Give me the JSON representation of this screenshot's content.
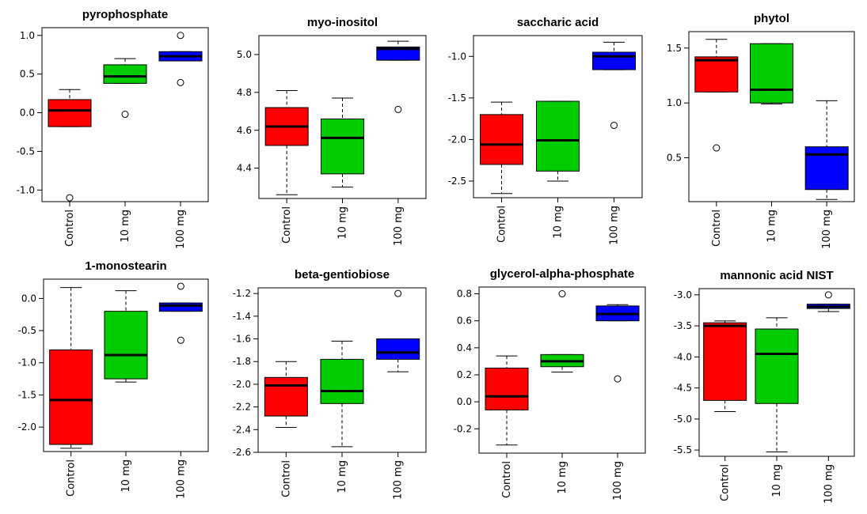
{
  "colors": {
    "Control": "#ff0000",
    "10 mg": "#00cc00",
    "100 mg": "#0000ff"
  },
  "chart_data": [
    {
      "type": "boxplot",
      "title": "pyrophosphate",
      "categories": [
        "Control",
        "10 mg",
        "100 mg"
      ],
      "ylim": [
        -1.15,
        1.1
      ],
      "yticks": [
        -1.0,
        -0.5,
        0.0,
        0.5,
        1.0
      ],
      "tick_labels": [
        "-1.0",
        "-0.5",
        "0.0",
        "0.5",
        "1.0"
      ],
      "boxes": [
        {
          "min": -0.18,
          "q1": -0.18,
          "median": 0.03,
          "q3": 0.17,
          "max": 0.3,
          "outliers": [
            -1.1
          ]
        },
        {
          "min": 0.38,
          "q1": 0.38,
          "median": 0.47,
          "q3": 0.62,
          "max": 0.7,
          "outliers": [
            -0.02
          ]
        },
        {
          "min": 0.67,
          "q1": 0.67,
          "median": 0.73,
          "q3": 0.79,
          "max": 0.79,
          "outliers": [
            1.0,
            0.39
          ]
        }
      ]
    },
    {
      "type": "boxplot",
      "title": "myo-inositol",
      "categories": [
        "Control",
        "10 mg",
        "100 mg"
      ],
      "ylim": [
        4.24,
        5.1
      ],
      "yticks": [
        4.4,
        4.6,
        4.8,
        5.0
      ],
      "tick_labels": [
        "4.4",
        "4.6",
        "4.8",
        "5.0"
      ],
      "boxes": [
        {
          "min": 4.26,
          "q1": 4.52,
          "median": 4.62,
          "q3": 4.72,
          "max": 4.81,
          "outliers": []
        },
        {
          "min": 4.3,
          "q1": 4.37,
          "median": 4.56,
          "q3": 4.66,
          "max": 4.77,
          "outliers": []
        },
        {
          "min": 4.97,
          "q1": 4.97,
          "median": 5.03,
          "q3": 5.04,
          "max": 5.07,
          "outliers": [
            4.71
          ]
        }
      ]
    },
    {
      "type": "boxplot",
      "title": "saccharic acid",
      "categories": [
        "Control",
        "10 mg",
        "100 mg"
      ],
      "ylim": [
        -2.7,
        -0.75
      ],
      "yticks": [
        -2.5,
        -2.0,
        -1.5,
        -1.0
      ],
      "tick_labels": [
        "-2.5",
        "-2.0",
        "-1.5",
        "-1.0"
      ],
      "boxes": [
        {
          "min": -2.65,
          "q1": -2.3,
          "median": -2.06,
          "q3": -1.7,
          "max": -1.55,
          "outliers": []
        },
        {
          "min": -2.5,
          "q1": -2.38,
          "median": -2.01,
          "q3": -1.54,
          "max": -1.54,
          "outliers": []
        },
        {
          "min": -1.16,
          "q1": -1.16,
          "median": -1.0,
          "q3": -0.95,
          "max": -0.83,
          "outliers": [
            -1.83
          ]
        }
      ]
    },
    {
      "type": "boxplot",
      "title": "phytol",
      "categories": [
        "Control",
        "10 mg",
        "100 mg"
      ],
      "ylim": [
        0.1,
        1.65
      ],
      "yticks": [
        0.5,
        1.0,
        1.5
      ],
      "tick_labels": [
        "0.5",
        "1.0",
        "1.5"
      ],
      "boxes": [
        {
          "min": 1.1,
          "q1": 1.1,
          "median": 1.39,
          "q3": 1.42,
          "max": 1.58,
          "outliers": [
            0.59
          ]
        },
        {
          "min": 0.99,
          "q1": 1.0,
          "median": 1.12,
          "q3": 1.54,
          "max": 1.54,
          "outliers": []
        },
        {
          "min": 0.12,
          "q1": 0.21,
          "median": 0.53,
          "q3": 0.6,
          "max": 1.02,
          "outliers": []
        }
      ]
    },
    {
      "type": "boxplot",
      "title": "1-monostearin",
      "categories": [
        "Control",
        "10 mg",
        "100 mg"
      ],
      "ylim": [
        -2.38,
        0.3
      ],
      "yticks": [
        -2.0,
        -1.5,
        -1.0,
        -0.5,
        0.0
      ],
      "tick_labels": [
        "-2.0",
        "-1.5",
        "-1.0",
        "-0.5",
        "0.0"
      ],
      "boxes": [
        {
          "min": -2.33,
          "q1": -2.27,
          "median": -1.58,
          "q3": -0.8,
          "max": 0.17,
          "outliers": []
        },
        {
          "min": -1.3,
          "q1": -1.25,
          "median": -0.88,
          "q3": -0.2,
          "max": 0.12,
          "outliers": []
        },
        {
          "min": -0.2,
          "q1": -0.2,
          "median": -0.11,
          "q3": -0.07,
          "max": -0.07,
          "outliers": [
            0.19,
            -0.65
          ]
        }
      ]
    },
    {
      "type": "boxplot",
      "title": "beta-gentiobiose",
      "categories": [
        "Control",
        "10 mg",
        "100 mg"
      ],
      "ylim": [
        -2.6,
        -1.15
      ],
      "yticks": [
        -2.6,
        -2.4,
        -2.2,
        -2.0,
        -1.8,
        -1.6,
        -1.4,
        -1.2
      ],
      "tick_labels": [
        "-2.6",
        "-2.4",
        "-2.2",
        "-2.0",
        "-1.8",
        "-1.6",
        "-1.4",
        "-1.2"
      ],
      "boxes": [
        {
          "min": -2.38,
          "q1": -2.28,
          "median": -2.01,
          "q3": -1.94,
          "max": -1.8,
          "outliers": []
        },
        {
          "min": -2.55,
          "q1": -2.17,
          "median": -2.06,
          "q3": -1.78,
          "max": -1.62,
          "outliers": []
        },
        {
          "min": -1.89,
          "q1": -1.78,
          "median": -1.72,
          "q3": -1.6,
          "max": -1.6,
          "outliers": [
            -1.2
          ]
        }
      ]
    },
    {
      "type": "boxplot",
      "title": "glycerol-alpha-phosphate",
      "categories": [
        "Control",
        "10 mg",
        "100 mg"
      ],
      "ylim": [
        -0.38,
        0.85
      ],
      "yticks": [
        -0.2,
        0.0,
        0.2,
        0.4,
        0.6,
        0.8
      ],
      "tick_labels": [
        "-0.2",
        "0.0",
        "0.2",
        "0.4",
        "0.6",
        "0.8"
      ],
      "boxes": [
        {
          "min": -0.32,
          "q1": -0.06,
          "median": 0.04,
          "q3": 0.25,
          "max": 0.34,
          "outliers": []
        },
        {
          "min": 0.22,
          "q1": 0.26,
          "median": 0.3,
          "q3": 0.35,
          "max": 0.35,
          "outliers": [
            0.8
          ]
        },
        {
          "min": 0.6,
          "q1": 0.6,
          "median": 0.65,
          "q3": 0.71,
          "max": 0.72,
          "outliers": [
            0.17
          ]
        }
      ]
    },
    {
      "type": "boxplot",
      "title": "mannonic acid NIST",
      "categories": [
        "Control",
        "10 mg",
        "100 mg"
      ],
      "ylim": [
        -5.6,
        -2.9
      ],
      "yticks": [
        -5.5,
        -5.0,
        -4.5,
        -4.0,
        -3.5,
        -3.0
      ],
      "tick_labels": [
        "-5.5",
        "-5.0",
        "-4.5",
        "-4.0",
        "-3.5",
        "-3.0"
      ],
      "boxes": [
        {
          "min": -4.88,
          "q1": -4.7,
          "median": -3.5,
          "q3": -3.45,
          "max": -3.42,
          "outliers": []
        },
        {
          "min": -5.53,
          "q1": -4.75,
          "median": -3.95,
          "q3": -3.55,
          "max": -3.37,
          "outliers": []
        },
        {
          "min": -3.27,
          "q1": -3.22,
          "median": -3.19,
          "q3": -3.15,
          "max": -3.15,
          "outliers": [
            -3.0
          ]
        }
      ]
    }
  ]
}
